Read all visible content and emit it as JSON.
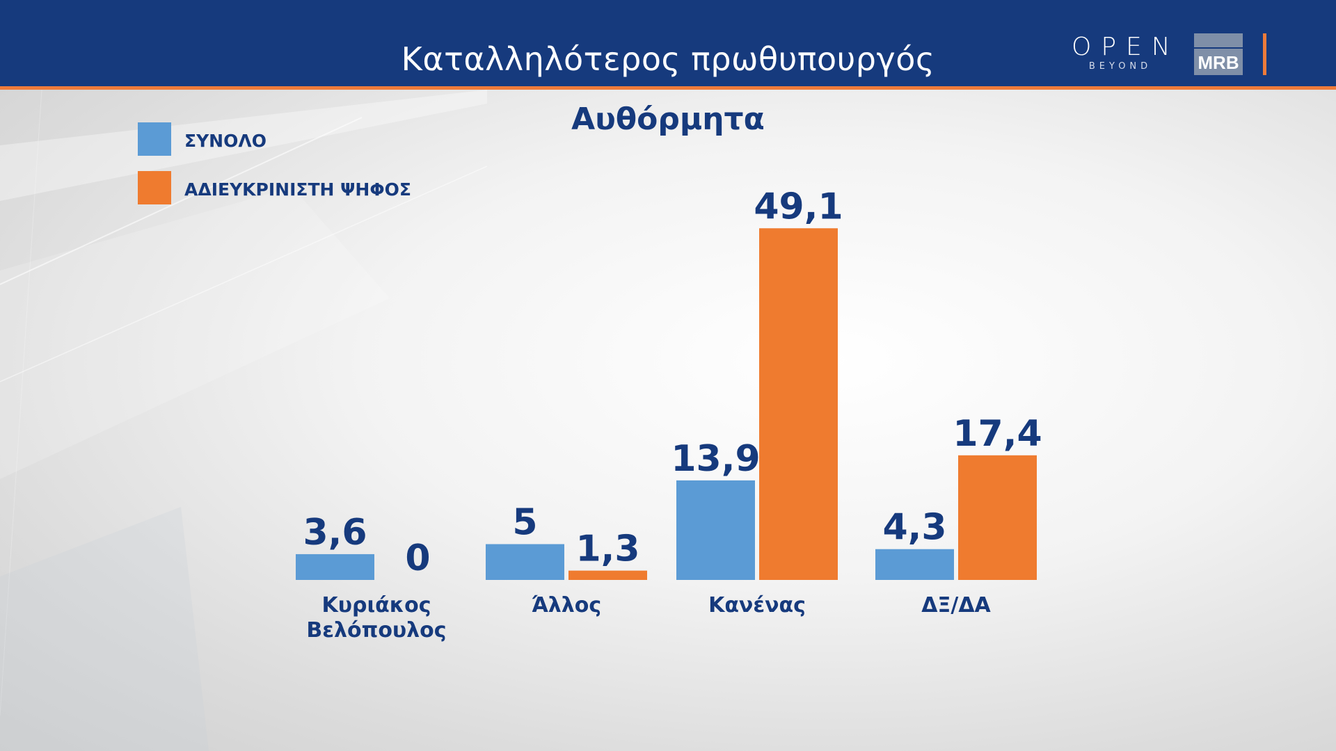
{
  "header": {
    "title": "Καταλληλότερος πρωθυπουργός",
    "logo_open_word": "OPEN",
    "logo_open_sub": "BEYOND",
    "logo_mrb": "MRB",
    "bg_color": "#163a7d",
    "accent_color": "#ef7b3a"
  },
  "legend": {
    "items": [
      {
        "label": "ΣΥΝΟΛΟ",
        "color": "#5b9bd5"
      },
      {
        "label": "ΑΔΙΕΥΚΡΙΝΙΣΤΗ ΨΗΦΟΣ",
        "color": "#ef7b2f"
      }
    ]
  },
  "chart_data": {
    "type": "bar",
    "title": "Αυθόρμητα",
    "categories": [
      [
        "Κυριάκος",
        "Βελόπουλος"
      ],
      [
        "Άλλος"
      ],
      [
        "Κανένας"
      ],
      [
        "ΔΞ/ΔΑ"
      ]
    ],
    "series": [
      {
        "name": "ΣΥΝΟΛΟ",
        "color": "#5b9bd5",
        "values": [
          3.6,
          5,
          13.9,
          4.3
        ],
        "labels": [
          "3,6",
          "5",
          "13,9",
          "4,3"
        ]
      },
      {
        "name": "ΑΔΙΕΥΚΡΙΝΙΣΤΗ ΨΗΦΟΣ",
        "color": "#ef7b2f",
        "values": [
          0,
          1.3,
          49.1,
          17.4
        ],
        "labels": [
          "0",
          "1,3",
          "49,1",
          "17,4"
        ]
      }
    ],
    "legend_position": "top-left",
    "grid": false
  }
}
